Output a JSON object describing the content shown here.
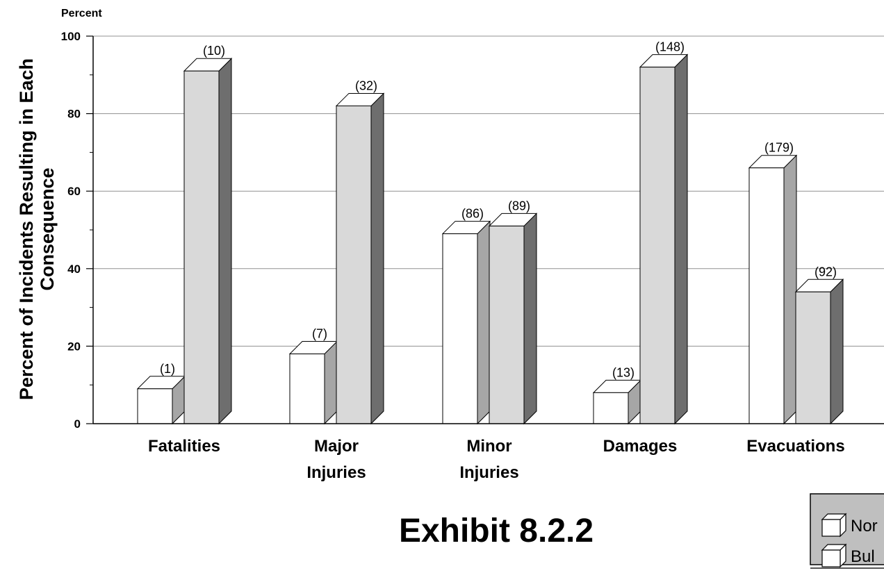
{
  "page": {
    "caption": "Exhibit 8.2.2"
  },
  "chart_data": {
    "type": "bar",
    "unit_label": "Percent",
    "ylabel_lines": [
      "Percent of Incidents Resulting in Each",
      "Consequence"
    ],
    "ylim": [
      0,
      100
    ],
    "yticks": [
      0,
      20,
      40,
      60,
      80,
      100
    ],
    "grid": true,
    "categories": [
      [
        "Fatalities"
      ],
      [
        "Major",
        "Injuries"
      ],
      [
        "Minor",
        "Injuries"
      ],
      [
        "Damages"
      ],
      [
        "Evacuations"
      ]
    ],
    "series": [
      {
        "name": "Nor",
        "color": "#ffffff",
        "values": [
          9,
          18,
          49,
          8,
          66
        ],
        "labels": [
          "(1)",
          "(7)",
          "(86)",
          "(13)",
          "(179)"
        ]
      },
      {
        "name": "Bul",
        "color": "#d9d9d9",
        "values": [
          91,
          82,
          51,
          92,
          34
        ],
        "labels": [
          "(10)",
          "(32)",
          "(89)",
          "(148)",
          "(92)"
        ]
      }
    ],
    "legend_position": "bottom-right"
  }
}
